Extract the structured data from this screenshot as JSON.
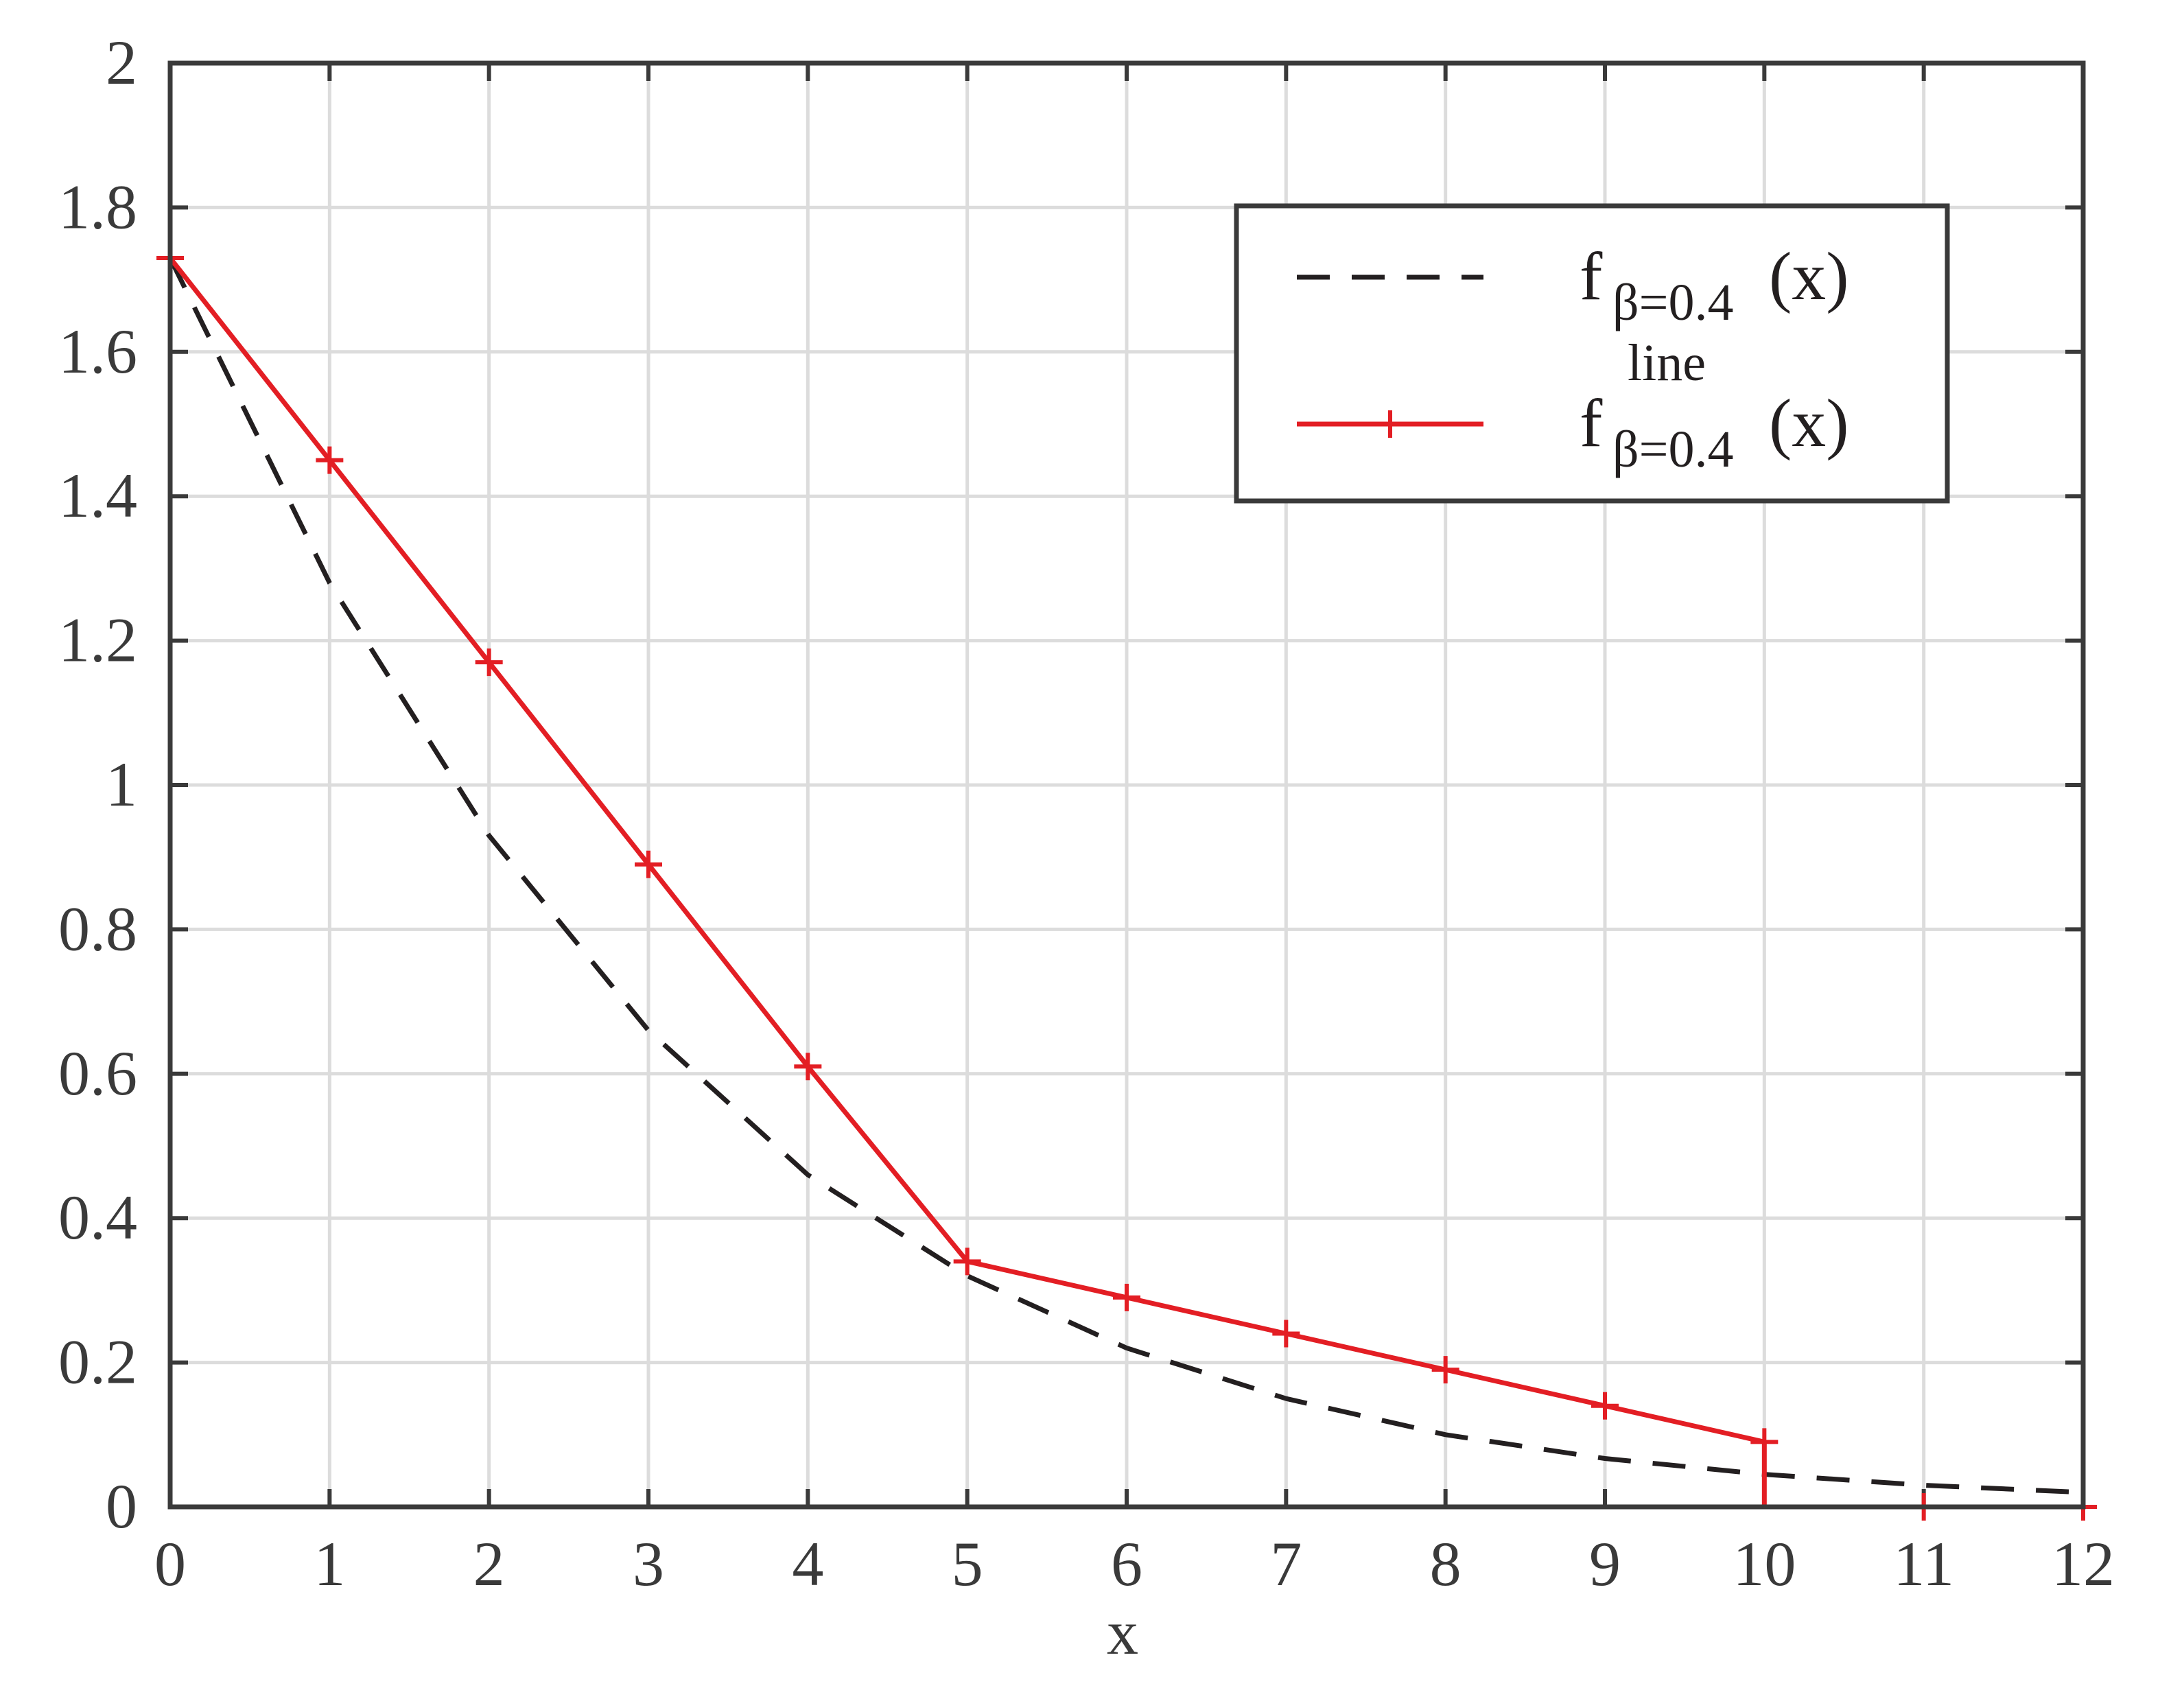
{
  "chart_data": {
    "type": "line",
    "xlabel": "x",
    "ylabel": "",
    "xlim": [
      0,
      12
    ],
    "ylim": [
      0,
      2
    ],
    "xticks": [
      "0",
      "1",
      "2",
      "3",
      "4",
      "5",
      "6",
      "7",
      "8",
      "9",
      "10",
      "11",
      "12"
    ],
    "yticks": [
      "0",
      "0.2",
      "0.4",
      "0.6",
      "0.8",
      "1",
      "1.2",
      "1.4",
      "1.6",
      "1.8",
      "2"
    ],
    "grid": true,
    "legend_position": "top-right",
    "series": [
      {
        "name": "f_{β=0.4}(x)",
        "legend_main": "f",
        "legend_sub": "β=0.4",
        "legend_tail": "(x)",
        "color": "#231f20",
        "style": "dashed",
        "marker": "none",
        "x": [
          0,
          1,
          2,
          3,
          4,
          5,
          6,
          7,
          8,
          9,
          10,
          11,
          12
        ],
        "y": [
          1.73,
          1.28,
          0.93,
          0.66,
          0.46,
          0.32,
          0.22,
          0.15,
          0.1,
          0.067,
          0.045,
          0.03,
          0.02
        ]
      },
      {
        "name": "f^{line}_{β=0.4}(x)",
        "legend_main": "f",
        "legend_sup": "line",
        "legend_sub": "β=0.4",
        "legend_tail": "(x)",
        "color": "#e31e24",
        "style": "solid",
        "marker": "plus",
        "x": [
          0,
          1,
          2,
          3,
          4,
          5,
          6,
          7,
          8,
          9,
          10,
          10,
          11,
          12
        ],
        "y": [
          1.73,
          1.45,
          1.17,
          0.89,
          0.61,
          0.34,
          0.29,
          0.24,
          0.19,
          0.14,
          0.09,
          0,
          0,
          0
        ],
        "marker_x": [
          0,
          1,
          2,
          3,
          4,
          5,
          6,
          7,
          8,
          9,
          10,
          11,
          12
        ],
        "marker_y": [
          1.73,
          1.45,
          1.17,
          0.89,
          0.61,
          0.34,
          0.29,
          0.24,
          0.19,
          0.14,
          0.09,
          0,
          0
        ]
      }
    ]
  }
}
